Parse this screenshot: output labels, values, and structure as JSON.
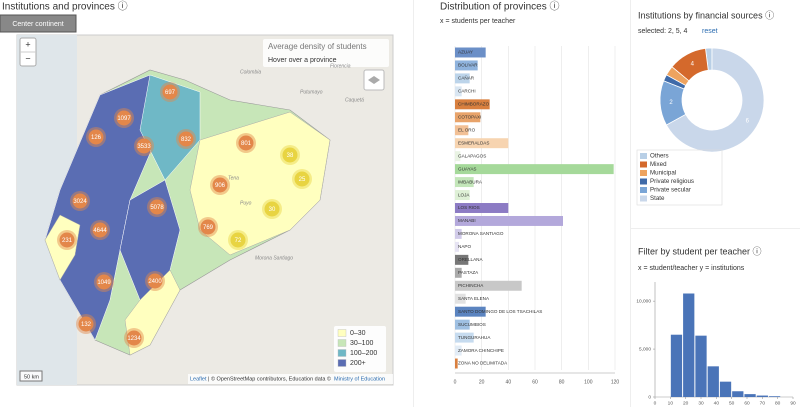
{
  "map_panel": {
    "title": "Institutions and provinces ⓘ",
    "button": "Center continent",
    "zoom_in": "+",
    "zoom_out": "−",
    "info_title": "Average density of students",
    "info_hint": "Hover over a province",
    "legend": [
      {
        "label": "0–30",
        "color": "#ffffbf"
      },
      {
        "label": "30–100",
        "color": "#c7e6b8"
      },
      {
        "label": "100–200",
        "color": "#6fb8c6"
      },
      {
        "label": "200+",
        "color": "#5a6db3"
      }
    ],
    "clusters": [
      {
        "count": 697,
        "color": "#e3874a"
      },
      {
        "count": 1097,
        "color": "#e3874a"
      },
      {
        "count": 126,
        "color": "#e3874a"
      },
      {
        "count": 3533,
        "color": "#e3874a"
      },
      {
        "count": 832,
        "color": "#e3874a"
      },
      {
        "count": 801,
        "color": "#e3874a"
      },
      {
        "count": 38,
        "color": "#e8d442"
      },
      {
        "count": 25,
        "color": "#e8d442"
      },
      {
        "count": 906,
        "color": "#e3874a"
      },
      {
        "count": 3024,
        "color": "#e3874a"
      },
      {
        "count": 5078,
        "color": "#e3874a"
      },
      {
        "count": 30,
        "color": "#e8d442"
      },
      {
        "count": 769,
        "color": "#e3874a"
      },
      {
        "count": 72,
        "color": "#e8d442"
      },
      {
        "count": 4644,
        "color": "#e3874a"
      },
      {
        "count": 231,
        "color": "#e3874a"
      },
      {
        "count": 1049,
        "color": "#e3874a"
      },
      {
        "count": 2400,
        "color": "#e3874a"
      },
      {
        "count": 132,
        "color": "#e3874a"
      },
      {
        "count": 1234,
        "color": "#e3874a"
      }
    ],
    "place_labels": [
      "Colombia",
      "Putumayo",
      "Caquetá",
      "Florencia",
      "Tena",
      "Puyo",
      "Morona Santiago"
    ],
    "scale": "50 km",
    "attribution_leaflet": "Leaflet",
    "attribution": "| © OpenStreetMap contributors, Education data ©",
    "attribution_link": "Ministry of Education"
  },
  "chart_data": [
    {
      "type": "bar",
      "title": "Distribution of provinces ⓘ",
      "subtitle": "x = students per teacher",
      "categories": [
        "AZUAY",
        "BOLIVAR",
        "CAÑAR",
        "CARCHI",
        "CHIMBORAZO",
        "COTOPAXI",
        "EL ORO",
        "ESMERALDAS",
        "GALAPAGOS",
        "GUAYAS",
        "IMBABURA",
        "LOJA",
        "LOS RIOS",
        "MANABI",
        "MORONA SANTIAGO",
        "NAPO",
        "ORELLANA",
        "PASTAZA",
        "PICHINCHA",
        "SANTA ELENA",
        "SANTO DOMINGO DE LOS TSACHILAS",
        "SUCUMBIOS",
        "TUNGURAHUA",
        "ZAMORA CHINCHIPE",
        "ZONA NO DELIMITADA"
      ],
      "values": [
        23,
        17,
        11,
        5,
        26,
        19,
        10,
        40,
        4,
        119,
        14,
        11,
        40,
        81,
        5,
        3,
        10,
        5,
        50,
        8,
        23,
        11,
        14,
        5,
        2
      ],
      "colors": [
        "#6b8fc7",
        "#8fb3dd",
        "#bcd4ea",
        "#d9e6f2",
        "#d9803f",
        "#e8a36a",
        "#f2c095",
        "#f7d4b0",
        "#e9f3e3",
        "#a5d99a",
        "#c3e6b9",
        "#def0d6",
        "#8c7bc4",
        "#b3a8db",
        "#d1cbe9",
        "#e6e3f3",
        "#777777",
        "#aaaaaa",
        "#c8c8c8",
        "#e2e2e2",
        "#5b84c0",
        "#9fc0e2",
        "#c6dbef",
        "#e2ecf6",
        "#d9803f"
      ],
      "xlim": [
        0,
        120
      ],
      "xticks": [
        0,
        20,
        40,
        60,
        80,
        100,
        120
      ],
      "grid": true
    },
    {
      "type": "pie",
      "title": "Institutions by financial sources ⓘ",
      "selected": "selected: 2, 5, 4",
      "reset": "reset",
      "series": [
        {
          "name": "Others",
          "color": "#b8cfe6",
          "value": 2
        },
        {
          "name": "Mixed",
          "color": "#d4692c",
          "value": 12,
          "label": "4"
        },
        {
          "name": "Municipal",
          "color": "#eea35f",
          "value": 3
        },
        {
          "name": "Private religious",
          "color": "#3f6aa8",
          "value": 2
        },
        {
          "name": "Private secular",
          "color": "#7aa5d6",
          "value": 14,
          "label": "2"
        },
        {
          "name": "State",
          "color": "#c9d7ea",
          "value": 67,
          "label": "6"
        }
      ]
    },
    {
      "type": "histogram",
      "title": "Filter by student per teacher ⓘ",
      "subtitle": "x = student/teacher y = institutions",
      "color": "#4a74b8",
      "bins": [
        10,
        18,
        26,
        34,
        42,
        50,
        58,
        66,
        74,
        82
      ],
      "values": [
        6500,
        10800,
        6400,
        3200,
        1600,
        600,
        300,
        150,
        80
      ],
      "xlim": [
        0,
        90
      ],
      "xticks": [
        0,
        10,
        20,
        30,
        40,
        50,
        60,
        70,
        80,
        90
      ],
      "ylim": [
        0,
        12000
      ],
      "yticks": [
        0,
        {
          "value": 5000,
          "label": "5,000"
        },
        {
          "value": 10000,
          "label": "10,000"
        }
      ]
    }
  ]
}
